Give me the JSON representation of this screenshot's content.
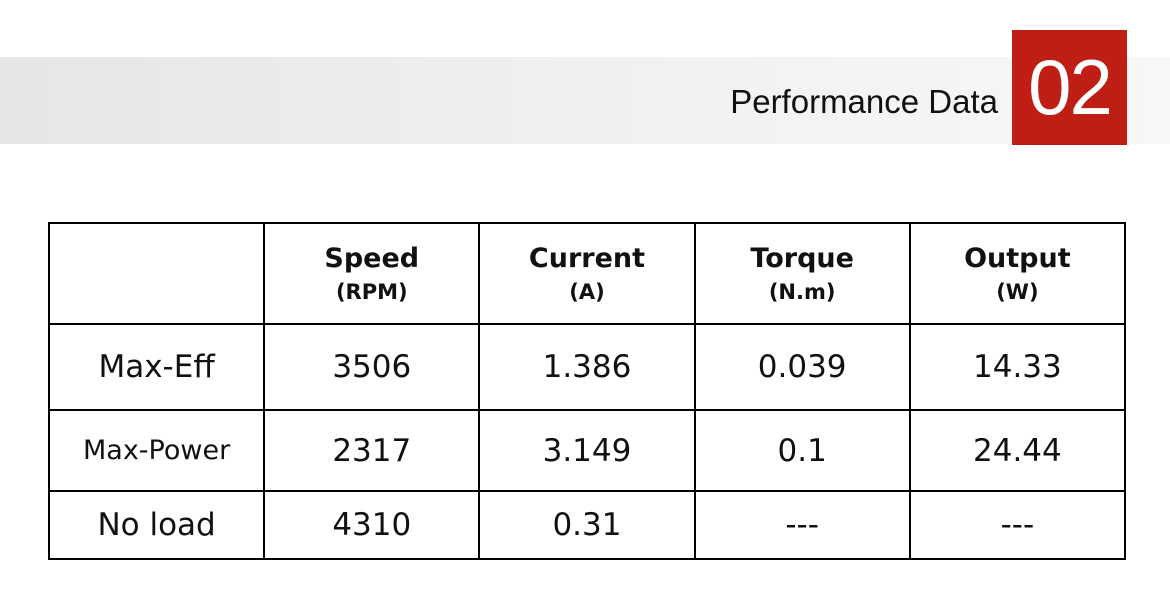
{
  "header": {
    "title": "Performance Data",
    "number": "02"
  },
  "table": {
    "columns": [
      {
        "name": "Speed",
        "unit": "(RPM)"
      },
      {
        "name": "Current",
        "unit": "(A)"
      },
      {
        "name": "Torque",
        "unit": "(N.m)"
      },
      {
        "name": "Output",
        "unit": "(W)"
      }
    ],
    "rows": [
      {
        "label": "Max-Eff",
        "cells": [
          "3506",
          "1.386",
          "0.039",
          "14.33"
        ]
      },
      {
        "label": "Max-Power",
        "cells": [
          "2317",
          "3.149",
          "0.1",
          "24.44"
        ]
      },
      {
        "label": "No load",
        "cells": [
          "4310",
          "0.31",
          "---",
          "---"
        ]
      }
    ]
  }
}
